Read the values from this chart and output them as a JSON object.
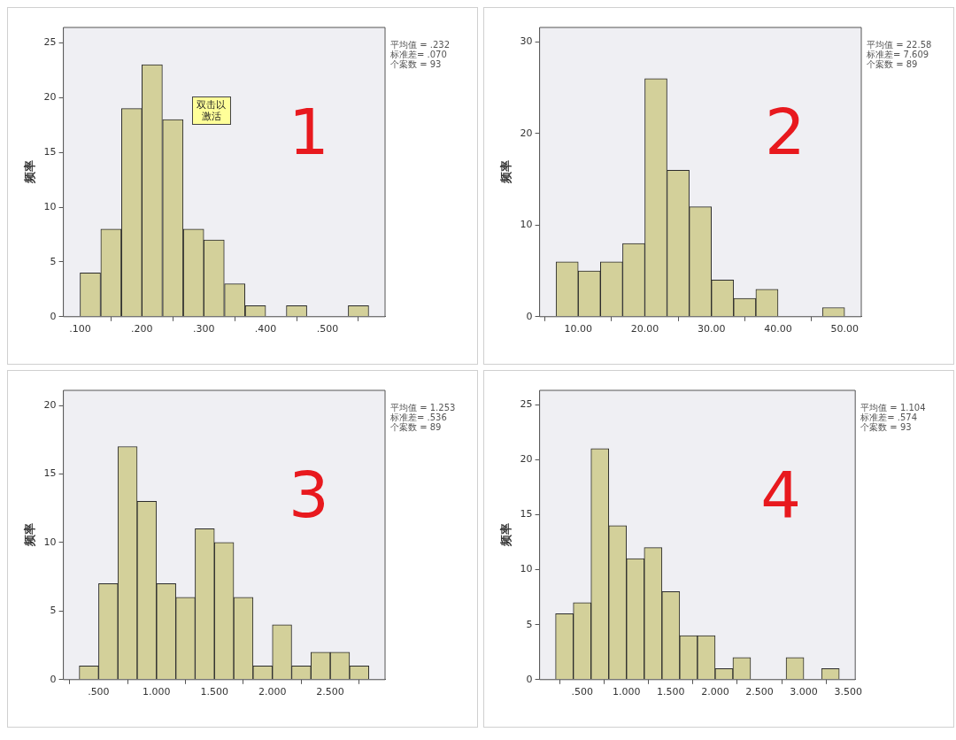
{
  "chart_data": [
    {
      "type": "histogram",
      "ylabel": "频率",
      "color": "#d3d09a",
      "bins": [
        0.1,
        0.133,
        0.167,
        0.2,
        0.233,
        0.267,
        0.3,
        0.333,
        0.367,
        0.4,
        0.433,
        0.467,
        0.5,
        0.533,
        0.567
      ],
      "values": [
        4,
        8,
        19,
        23,
        18,
        8,
        7,
        3,
        1,
        0,
        1,
        0,
        0,
        1
      ],
      "xlim": [
        0.073,
        0.593
      ],
      "ylim": [
        0,
        26.4
      ],
      "xticks": [
        {
          "value": 0.1,
          "label": ".100"
        },
        {
          "value": 0.2,
          "label": ".200"
        },
        {
          "value": 0.3,
          "label": ".300"
        },
        {
          "value": 0.4,
          "label": ".400"
        },
        {
          "value": 0.5,
          "label": ".500"
        }
      ],
      "yticks": [
        0,
        5,
        10,
        15,
        20,
        25
      ],
      "annotations": [
        "平均值 = .232",
        "标准差= .070",
        "个案数 = 93",
        "双击以激活",
        "1"
      ]
    },
    {
      "type": "histogram",
      "ylabel": "频率",
      "color": "#d3d09a",
      "bins": [
        6.67,
        10,
        13.33,
        16.67,
        20,
        23.33,
        26.67,
        30,
        33.33,
        36.67,
        40,
        43.33,
        46.67,
        50
      ],
      "values": [
        6,
        5,
        6,
        8,
        26,
        16,
        12,
        4,
        2,
        3,
        0,
        0,
        1
      ],
      "xlim": [
        4.2,
        52.5
      ],
      "ylim": [
        0,
        31.6
      ],
      "xticks": [
        {
          "value": 10,
          "label": "10.00"
        },
        {
          "value": 20,
          "label": "20.00"
        },
        {
          "value": 30,
          "label": "30.00"
        },
        {
          "value": 40,
          "label": "40.00"
        },
        {
          "value": 50,
          "label": "50.00"
        }
      ],
      "yticks": [
        0,
        10,
        20,
        30
      ],
      "annotations": [
        "平均值 = 22.58",
        "标准差= 7.609",
        "个案数 = 89",
        "2"
      ]
    },
    {
      "type": "histogram",
      "ylabel": "频率",
      "color": "#d3d09a",
      "bins": [
        0.333,
        0.5,
        0.667,
        0.833,
        1,
        1.167,
        1.333,
        1.5,
        1.667,
        1.833,
        2,
        2.167,
        2.333,
        2.5,
        2.667,
        2.833
      ],
      "values": [
        1,
        7,
        17,
        13,
        7,
        6,
        11,
        10,
        6,
        1,
        4,
        1,
        2,
        2,
        1
      ],
      "xlim": [
        0.196,
        2.973
      ],
      "ylim": [
        0,
        21.1
      ],
      "xticks": [
        {
          "value": 0.5,
          "label": ".500"
        },
        {
          "value": 1,
          "label": "1.000"
        },
        {
          "value": 1.5,
          "label": "1.500"
        },
        {
          "value": 2,
          "label": "2.000"
        },
        {
          "value": 2.5,
          "label": "2.500"
        }
      ],
      "yticks": [
        0,
        5,
        10,
        15,
        20
      ],
      "annotations": [
        "平均值 = 1.253",
        "标准差= .536",
        "个案数 = 89",
        "3"
      ]
    },
    {
      "type": "histogram",
      "ylabel": "频率",
      "color": "#d3d09a",
      "bins": [
        0.2,
        0.4,
        0.6,
        0.8,
        1,
        1.2,
        1.4,
        1.6,
        1.8,
        2,
        2.2,
        2.4,
        2.6,
        2.8,
        3,
        3.2,
        3.4
      ],
      "values": [
        6,
        7,
        21,
        14,
        11,
        12,
        8,
        4,
        4,
        1,
        2,
        0,
        0,
        2,
        0,
        1
      ],
      "xlim": [
        0.02,
        3.58
      ],
      "ylim": [
        0,
        26.3
      ],
      "xticks": [
        {
          "value": 0.5,
          "label": ".500"
        },
        {
          "value": 1,
          "label": "1.000"
        },
        {
          "value": 1.5,
          "label": "1.500"
        },
        {
          "value": 2,
          "label": "2.000"
        },
        {
          "value": 2.5,
          "label": "2.500"
        },
        {
          "value": 3,
          "label": "3.000"
        },
        {
          "value": 3.5,
          "label": "3.500"
        }
      ],
      "yticks": [
        0,
        5,
        10,
        15,
        20,
        25
      ],
      "annotations": [
        "平均值 = 1.104",
        "标准差= .574",
        "个案数 = 93",
        "4"
      ]
    }
  ]
}
